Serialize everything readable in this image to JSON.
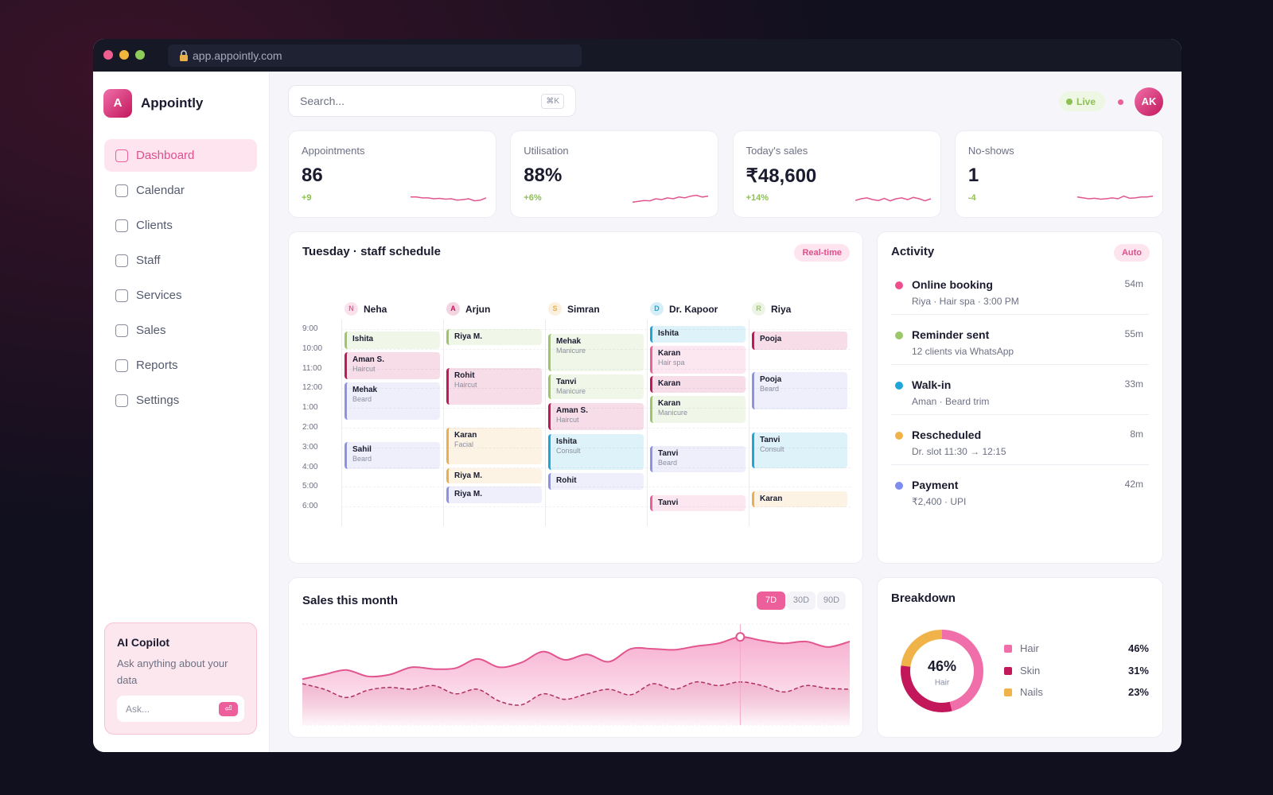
{
  "browser": {
    "url": "app.appointly.com"
  },
  "sidebar": {
    "logo_letter": "A",
    "brand": "Appointly",
    "active_nav": 0,
    "nav": [
      "Dashboard",
      "Calendar",
      "Clients",
      "Staff",
      "Services",
      "Sales",
      "Reports",
      "Settings"
    ],
    "copilot": {
      "title": "AI Copilot",
      "text": "Ask anything about your data",
      "placeholder": "Ask...",
      "button": "⏎"
    }
  },
  "topbar": {
    "search_placeholder": "Search...",
    "shortcut": "⌘K",
    "live": "Live",
    "avatar": "AK"
  },
  "spark_ylim": [
    0,
    10
  ],
  "kpis": [
    {
      "label": "Appointments",
      "value": "86",
      "delta": "+9",
      "spark": [
        6,
        6,
        5.5,
        5.5,
        5,
        5.2,
        4.8,
        5,
        4.2,
        4.5,
        5,
        3.8,
        4.2,
        5.5
      ]
    },
    {
      "label": "Utilisation",
      "value": "88%",
      "delta": "+6%",
      "spark": [
        3,
        3.5,
        4,
        3.8,
        5,
        4.5,
        5.5,
        5,
        6,
        5.5,
        6.5,
        7,
        6,
        6.5
      ]
    },
    {
      "label": "Today's sales",
      "value": "₹48,600",
      "delta": "+14%",
      "spark": [
        4,
        5,
        5.5,
        4.5,
        4,
        5.2,
        3.8,
        5,
        5.5,
        4.5,
        5.8,
        5,
        3.8,
        5
      ]
    },
    {
      "label": "No-shows",
      "value": "1",
      "delta": "-4",
      "spark": [
        6,
        5.5,
        5,
        5.3,
        4.8,
        5,
        5.5,
        5,
        6.5,
        5.3,
        5.5,
        6,
        6,
        6.5
      ]
    }
  ],
  "schedule": {
    "title": "Tuesday · staff schedule",
    "badge": "Real-time",
    "times": [
      "9:00",
      "10:00",
      "11:00",
      "12:00",
      "1:00",
      "2:00",
      "3:00",
      "4:00",
      "5:00",
      "6:00"
    ],
    "staff": [
      {
        "initial": "N",
        "name": "Neha",
        "color": "#ec5f9a",
        "appointments": [
          {
            "client": "Ishita",
            "start": 9.3,
            "end": 10.15,
            "color": "#9bc76a"
          },
          {
            "client": "Aman S.",
            "service": "Haircut",
            "start": 10.35,
            "end": 11.7,
            "color": "#c2185b"
          },
          {
            "client": "Mehak",
            "service": "Beard",
            "start": 11.85,
            "end": 13.75,
            "color": "#8b93e6"
          },
          {
            "client": "Sahil",
            "service": "Beard",
            "start": 14.9,
            "end": 16.25,
            "color": "#8b93e6"
          }
        ]
      },
      {
        "initial": "A",
        "name": "Arjun",
        "color": "#c2185b",
        "appointments": [
          {
            "client": "Riya M.",
            "start": 9.15,
            "end": 9.95,
            "color": "#9bc76a"
          },
          {
            "client": "Rohit",
            "service": "Haircut",
            "start": 11.15,
            "end": 13.0,
            "color": "#c2185b"
          },
          {
            "client": "Karan",
            "service": "Facial",
            "start": 14.15,
            "end": 16.0,
            "color": "#eab04c"
          },
          {
            "client": "Riya M.",
            "start": 16.2,
            "end": 17.0,
            "color": "#eab04c"
          },
          {
            "client": "Riya M.",
            "start": 17.15,
            "end": 18.0,
            "color": "#8b93e6"
          }
        ]
      },
      {
        "initial": "S",
        "name": "Simran",
        "color": "#eab04c",
        "appointments": [
          {
            "client": "Mehak",
            "service": "Manicure",
            "start": 9.4,
            "end": 11.3,
            "color": "#9bc76a"
          },
          {
            "client": "Tanvi",
            "service": "Manicure",
            "start": 11.45,
            "end": 12.7,
            "color": "#9bc76a"
          },
          {
            "client": "Aman S.",
            "service": "Haircut",
            "start": 12.9,
            "end": 14.3,
            "color": "#c2185b"
          },
          {
            "client": "Ishita",
            "service": "Consult",
            "start": 14.5,
            "end": 16.3,
            "color": "#1ea6d8"
          },
          {
            "client": "Rohit",
            "start": 16.45,
            "end": 17.3,
            "color": "#8b93e6"
          }
        ]
      },
      {
        "initial": "D",
        "name": "Dr. Kapoor",
        "color": "#1ea6d8",
        "appointments": [
          {
            "client": "Ishita",
            "start": 9.0,
            "end": 9.85,
            "color": "#1ea6d8"
          },
          {
            "client": "Karan",
            "service": "Hair spa",
            "start": 10.0,
            "end": 11.4,
            "color": "#ec5f9a"
          },
          {
            "client": "Karan",
            "start": 11.55,
            "end": 12.4,
            "color": "#c2185b"
          },
          {
            "client": "Karan",
            "service": "Manicure",
            "start": 12.55,
            "end": 13.9,
            "color": "#9bc76a"
          },
          {
            "client": "Tanvi",
            "service": "Beard",
            "start": 15.1,
            "end": 16.4,
            "color": "#8b93e6"
          },
          {
            "client": "Tanvi",
            "start": 17.6,
            "end": 18.4,
            "color": "#ec5f9a"
          }
        ]
      },
      {
        "initial": "R",
        "name": "Riya",
        "color": "#9bc76a",
        "appointments": [
          {
            "client": "Pooja",
            "start": 9.3,
            "end": 10.2,
            "color": "#c2185b"
          },
          {
            "client": "Pooja",
            "service": "Beard",
            "start": 11.35,
            "end": 13.25,
            "color": "#8b93e6"
          },
          {
            "client": "Tanvi",
            "service": "Consult",
            "start": 14.4,
            "end": 16.2,
            "color": "#1ea6d8"
          },
          {
            "client": "Karan",
            "start": 17.4,
            "end": 18.2,
            "color": "#eab04c"
          }
        ]
      }
    ]
  },
  "activity": {
    "title": "Activity",
    "badge": "Auto",
    "items": [
      {
        "title": "Online booking",
        "detail": "Riya · Hair spa · 3:00 PM",
        "time": "54m",
        "color": "#ec4f8c"
      },
      {
        "title": "Reminder sent",
        "detail": "12 clients via WhatsApp",
        "time": "55m",
        "color": "#9bc76a"
      },
      {
        "title": "Walk-in",
        "detail": "Aman · Beard trim",
        "time": "33m",
        "color": "#1ea6d8"
      },
      {
        "title": "Rescheduled",
        "detail": "Dr. slot 11:30 → 12:15",
        "time": "8m",
        "color": "#f0b34a"
      },
      {
        "title": "Payment",
        "detail": "₹2,400 · UPI",
        "time": "42m",
        "color": "#7e8cf0"
      }
    ]
  },
  "sales": {
    "title": "Sales this month",
    "ranges": [
      "7D",
      "30D",
      "90D"
    ],
    "active_range": 0,
    "ylim": [
      0,
      110
    ],
    "marker_index": 20,
    "series": [
      {
        "color": "#e2558f",
        "style": "solid",
        "values": [
          50,
          55,
          60,
          53,
          55,
          63,
          61,
          62,
          72,
          63,
          68,
          80,
          71,
          77,
          69,
          83,
          83,
          82,
          86,
          89,
          96,
          92,
          89,
          91,
          85,
          91
        ]
      },
      {
        "color": "#b0305f",
        "style": "dashed",
        "values": [
          45,
          39,
          30,
          38,
          41,
          39,
          43,
          34,
          39,
          26,
          22,
          34,
          28,
          34,
          39,
          33,
          45,
          39,
          47,
          43,
          47,
          43,
          36,
          43,
          40,
          39
        ]
      }
    ]
  },
  "breakdown": {
    "title": "Breakdown",
    "center_value": "46%",
    "center_caption": "Hair",
    "items": [
      {
        "name": "Hair",
        "value": 46,
        "label": "46%",
        "color": "#f06ea9"
      },
      {
        "name": "Skin",
        "value": 31,
        "label": "31%",
        "color": "#c2185b"
      },
      {
        "name": "Nails",
        "value": 23,
        "label": "23%",
        "color": "#f0b34a"
      }
    ]
  }
}
